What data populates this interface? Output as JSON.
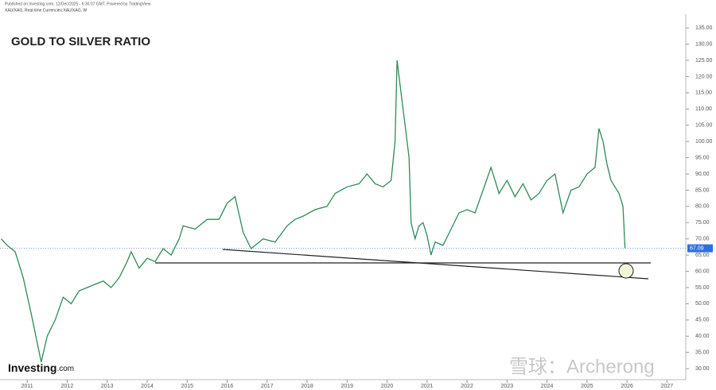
{
  "header": {
    "published": "Published on Investing.com, 12/Dec/2025 - 6:30:07 GMT, Powered by TradingView",
    "symbol": "XAU/XAG, Real-time Currencies:XAU/XAG, W"
  },
  "brand": {
    "logo": "Investing",
    "logo_suffix": ".com",
    "watermark": "雪球：Archerong"
  },
  "chart_data": {
    "type": "line",
    "title": "GOLD TO SILVER RATIO",
    "x": [
      2010.35,
      2010.5,
      2010.7,
      2010.9,
      2011.1,
      2011.3,
      2011.35,
      2011.5,
      2011.7,
      2011.9,
      2012.1,
      2012.3,
      2012.5,
      2012.7,
      2012.9,
      2013.1,
      2013.3,
      2013.5,
      2013.6,
      2013.8,
      2014.0,
      2014.2,
      2014.4,
      2014.6,
      2014.8,
      2014.9,
      2015.2,
      2015.5,
      2015.8,
      2016.0,
      2016.2,
      2016.4,
      2016.6,
      2016.9,
      2017.2,
      2017.5,
      2017.7,
      2017.9,
      2018.2,
      2018.5,
      2018.7,
      2019.0,
      2019.3,
      2019.5,
      2019.7,
      2019.9,
      2020.1,
      2020.2,
      2020.25,
      2020.35,
      2020.45,
      2020.55,
      2020.6,
      2020.7,
      2020.8,
      2020.9,
      2021.0,
      2021.1,
      2021.2,
      2021.4,
      2021.6,
      2021.8,
      2022.0,
      2022.2,
      2022.4,
      2022.6,
      2022.8,
      2023.0,
      2023.2,
      2023.4,
      2023.6,
      2023.8,
      2024.0,
      2024.2,
      2024.4,
      2024.6,
      2024.8,
      2025.0,
      2025.2,
      2025.3,
      2025.4,
      2025.5,
      2025.6,
      2025.7,
      2025.8,
      2025.9,
      2025.95
    ],
    "series": [
      {
        "name": "XAU/XAG",
        "color": "#2e8b57",
        "values": [
          70,
          68,
          66,
          58,
          47,
          35,
          32,
          40,
          45,
          52,
          50,
          54,
          55,
          56,
          57,
          55,
          58,
          63,
          66,
          61,
          64,
          63,
          67,
          65,
          70,
          74,
          73,
          76,
          76,
          81,
          83,
          72,
          67,
          70,
          69,
          74,
          76,
          77,
          79,
          80,
          84,
          86,
          87,
          90,
          87,
          86,
          88,
          100,
          125,
          115,
          105,
          95,
          75,
          70,
          74,
          75,
          71,
          65,
          69,
          68,
          73,
          78,
          79,
          78,
          85,
          92,
          84,
          88,
          83,
          87,
          82,
          84,
          88,
          90,
          78,
          85,
          86,
          90,
          92,
          104,
          100,
          93,
          88,
          86,
          84,
          80,
          67.09
        ]
      }
    ],
    "current_price": 67.09,
    "xlim": [
      2010.32,
      2027.47
    ],
    "ylim": [
      26.6,
      139.2
    ],
    "xticks": [
      2011,
      2012,
      2013,
      2014,
      2015,
      2016,
      2017,
      2018,
      2019,
      2020,
      2021,
      2022,
      2023,
      2024,
      2025,
      2026,
      2027
    ],
    "yticks": [
      {
        "value": 30,
        "label": "30.00"
      },
      {
        "value": 35,
        "label": "35.00"
      },
      {
        "value": 40,
        "label": "40.00"
      },
      {
        "value": 45,
        "label": "45.00"
      },
      {
        "value": 50,
        "label": "50.00"
      },
      {
        "value": 55,
        "label": "55.00"
      },
      {
        "value": 60,
        "label": "60.00"
      },
      {
        "value": 65,
        "label": "65.00"
      },
      {
        "value": 70,
        "label": "70.00"
      },
      {
        "value": 75,
        "label": "75.00"
      },
      {
        "value": 80,
        "label": "80.00"
      },
      {
        "value": 85,
        "label": "85.00"
      },
      {
        "value": 90,
        "label": "90.00"
      },
      {
        "value": 95,
        "label": "95.00"
      },
      {
        "value": 100,
        "label": "100.00"
      },
      {
        "value": 105,
        "label": "105.00"
      },
      {
        "value": 110,
        "label": "110.00"
      },
      {
        "value": 115,
        "label": "115.00"
      },
      {
        "value": 120,
        "label": "120.00"
      },
      {
        "value": 125,
        "label": "125.00"
      },
      {
        "value": 130,
        "label": "130.00"
      },
      {
        "value": 135,
        "label": "135.00"
      }
    ]
  }
}
